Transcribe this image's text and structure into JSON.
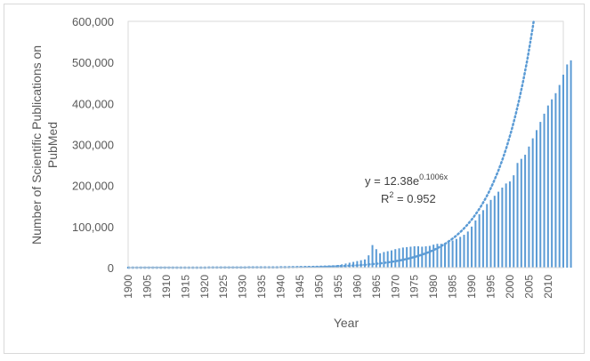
{
  "colors": {
    "series": "#5b9bd5",
    "axis": "#d9d9d9",
    "text": "#595959"
  },
  "chart_data": {
    "type": "bar",
    "title": "",
    "xlabel": "Year",
    "ylabel_lines": [
      "Number of Scientific Publications on",
      "PubMed"
    ],
    "x_start": 1900,
    "x_end": 2014,
    "xticks": [
      "1900",
      "1905",
      "1910",
      "1915",
      "1920",
      "1925",
      "1930",
      "1935",
      "1940",
      "1945",
      "1950",
      "1955",
      "1960",
      "1965",
      "1970",
      "1975",
      "1980",
      "1985",
      "1990",
      "1995",
      "2000",
      "2005",
      "2010"
    ],
    "yticks": [
      "0",
      "100,000",
      "200,000",
      "300,000",
      "400,000",
      "500,000",
      "600,000"
    ],
    "ylim": [
      0,
      600000
    ],
    "grid": false,
    "values": [
      300,
      300,
      300,
      300,
      300,
      300,
      300,
      300,
      300,
      300,
      300,
      300,
      300,
      300,
      300,
      300,
      300,
      300,
      300,
      300,
      300,
      300,
      300,
      300,
      300,
      300,
      300,
      300,
      300,
      300,
      300,
      300,
      300,
      300,
      300,
      300,
      300,
      300,
      300,
      300,
      300,
      300,
      300,
      300,
      300,
      1200,
      1500,
      1800,
      2200,
      2600,
      3000,
      3500,
      4000,
      4800,
      5500,
      6500,
      8000,
      10000,
      12000,
      14000,
      16000,
      18000,
      20000,
      30000,
      55000,
      45000,
      35000,
      38000,
      40000,
      42000,
      45000,
      47000,
      49000,
      50000,
      51000,
      52000,
      52000,
      51000,
      52000,
      53000,
      56000,
      58000,
      58000,
      60000,
      62000,
      66000,
      70000,
      75000,
      80000,
      88000,
      100000,
      115000,
      130000,
      140000,
      155000,
      165000,
      175000,
      185000,
      195000,
      205000,
      210000,
      225000,
      255000,
      265000,
      275000,
      295000,
      315000,
      335000,
      355000,
      375000,
      395000,
      410000,
      425000,
      445000,
      470000,
      495000,
      505000
    ],
    "trendline": {
      "type": "exponential",
      "a": 12.38,
      "b": 0.1006,
      "x_offset": 1899
    },
    "annotation": {
      "eq_prefix": "y = 12.38e",
      "eq_exponent": "0.1006x",
      "r2_prefix": "R",
      "r2_sup": "2",
      "r2_value": " = 0.952"
    }
  }
}
